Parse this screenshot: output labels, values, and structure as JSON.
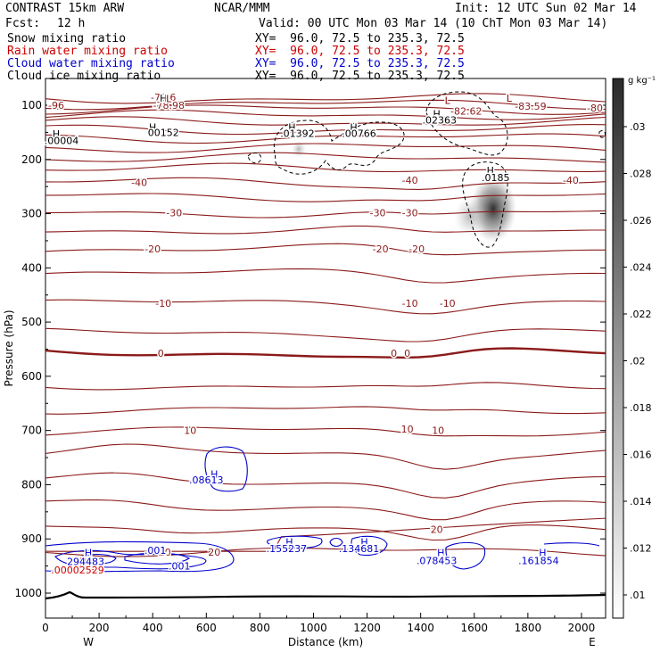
{
  "header": {
    "title": "CONTRAST 15km ARW",
    "org": "NCAR/MMM",
    "init": "Init: 12 UTC Sun 02 Mar 14",
    "fcst_label": "Fcst:",
    "fcst_value": "12 h",
    "valid": "Valid: 00 UTC Mon 03 Mar 14 (10 ChT Mon 03 Mar 14)",
    "fields": [
      {
        "name": "Snow mixing ratio",
        "xy": "XY=  96.0, 72.5 to 235.3, 72.5",
        "color": "#000000"
      },
      {
        "name": "Rain water mixing ratio",
        "xy": "XY=  96.0, 72.5 to 235.3, 72.5",
        "color": "#cc0000"
      },
      {
        "name": "Cloud water mixing ratio",
        "xy": "XY=  96.0, 72.5 to 235.3, 72.5",
        "color": "#0000cc"
      },
      {
        "name": "Cloud ice mixing ratio",
        "xy": "XY=  96.0, 72.5 to 235.3, 72.5",
        "color": "#000000"
      }
    ]
  },
  "chart_data": {
    "type": "cross-section contour",
    "xlabel": "Distance (km)",
    "ylabel": "Pressure (hPa)",
    "x_range": [
      0,
      2090
    ],
    "y_range": [
      1040,
      50
    ],
    "x_ticks": [
      "0",
      "200",
      "400",
      "600",
      "800",
      "1000",
      "1200",
      "1400",
      "1600",
      "1800",
      "2000"
    ],
    "y_ticks": [
      "100",
      "200",
      "300",
      "400",
      "500",
      "600",
      "700",
      "800",
      "900",
      "1000"
    ],
    "x_end_labels": {
      "left": "W",
      "right": "E"
    },
    "colorbar": {
      "unit": "g kg⁻¹",
      "ticks": [
        ".01",
        ".012",
        ".014",
        ".016",
        ".018",
        ".02",
        ".022",
        ".024",
        ".026",
        ".028",
        ".03"
      ]
    },
    "temperature_labels": [
      {
        "x": 440,
        "p": 85,
        "text": "-72.6"
      },
      {
        "x": 40,
        "p": 100,
        "text": "-96"
      },
      {
        "x": 460,
        "p": 100,
        "text": "-78.98"
      },
      {
        "x": 1810,
        "p": 102,
        "text": "-83.59"
      },
      {
        "x": 2050,
        "p": 105,
        "text": "-80"
      },
      {
        "x": 1570,
        "p": 111,
        "text": "-82.62"
      },
      {
        "x": 350,
        "p": 242,
        "text": "-40"
      },
      {
        "x": 1360,
        "p": 238,
        "text": "-40"
      },
      {
        "x": 1960,
        "p": 238,
        "text": "-40"
      },
      {
        "x": 480,
        "p": 298,
        "text": "-30"
      },
      {
        "x": 1240,
        "p": 298,
        "text": "-30"
      },
      {
        "x": 1360,
        "p": 298,
        "text": "-30"
      },
      {
        "x": 400,
        "p": 365,
        "text": "-20"
      },
      {
        "x": 1250,
        "p": 365,
        "text": "-20"
      },
      {
        "x": 1385,
        "p": 365,
        "text": "-20"
      },
      {
        "x": 440,
        "p": 465,
        "text": "-10"
      },
      {
        "x": 1360,
        "p": 465,
        "text": "-10"
      },
      {
        "x": 1500,
        "p": 465,
        "text": "-10"
      },
      {
        "x": 430,
        "p": 557,
        "text": "0"
      },
      {
        "x": 1300,
        "p": 557,
        "text": "0"
      },
      {
        "x": 1350,
        "p": 557,
        "text": "0"
      },
      {
        "x": 540,
        "p": 700,
        "text": "10"
      },
      {
        "x": 1350,
        "p": 697,
        "text": "10"
      },
      {
        "x": 1465,
        "p": 700,
        "text": "10"
      },
      {
        "x": 1460,
        "p": 882,
        "text": "20"
      },
      {
        "x": 445,
        "p": 924,
        "text": "20"
      },
      {
        "x": 630,
        "p": 924,
        "text": "20"
      }
    ],
    "high_low_labels": [
      {
        "x": 440,
        "p": 87,
        "text": "H",
        "color": "#000000"
      },
      {
        "x": 460,
        "p": 88,
        "text": "L",
        "color": "#880000"
      },
      {
        "x": 1730,
        "p": 87,
        "text": "L",
        "color": "#880000"
      },
      {
        "x": 1500,
        "p": 91,
        "text": "L",
        "color": "#880000"
      },
      {
        "x": 1460,
        "p": 116,
        "text": "H",
        "color": "#000000"
      },
      {
        "x": 1470,
        "p": 127,
        "text": ".02363",
        "color": "#000000"
      },
      {
        "x": 40,
        "p": 153,
        "text": "H",
        "color": "#000000"
      },
      {
        "x": 60,
        "p": 165,
        "text": ".00004",
        "color": "#000000"
      },
      {
        "x": 400,
        "p": 140,
        "text": "H",
        "color": "#000000"
      },
      {
        "x": 440,
        "p": 150,
        "text": "00152",
        "color": "#000000"
      },
      {
        "x": 920,
        "p": 140,
        "text": "H",
        "color": "#000000"
      },
      {
        "x": 940,
        "p": 152,
        "text": ".01392",
        "color": "#000000"
      },
      {
        "x": 1150,
        "p": 140,
        "text": "H",
        "color": "#000000"
      },
      {
        "x": 1170,
        "p": 152,
        "text": ".00766",
        "color": "#000000"
      },
      {
        "x": 1660,
        "p": 220,
        "text": "H",
        "color": "#000000"
      },
      {
        "x": 1680,
        "p": 233,
        "text": ".0185",
        "color": "#000000"
      },
      {
        "x": 630,
        "p": 780,
        "text": "H",
        "color": "#0000cc"
      },
      {
        "x": 600,
        "p": 791,
        "text": ".08613",
        "color": "#0000cc"
      },
      {
        "x": 910,
        "p": 905,
        "text": "H",
        "color": "#0000cc"
      },
      {
        "x": 900,
        "p": 918,
        "text": ".155237",
        "color": "#0000cc"
      },
      {
        "x": 1190,
        "p": 905,
        "text": "H",
        "color": "#0000cc"
      },
      {
        "x": 1170,
        "p": 918,
        "text": ".134681",
        "color": "#0000cc"
      },
      {
        "x": 160,
        "p": 925,
        "text": "H",
        "color": "#0000cc"
      },
      {
        "x": 140,
        "p": 942,
        "text": "H",
        "color": "#cc0000"
      },
      {
        "x": 150,
        "p": 942,
        "text": "294483",
        "color": "#0000cc"
      },
      {
        "x": 120,
        "p": 957,
        "text": ".00002529",
        "color": "#cc0000"
      },
      {
        "x": 410,
        "p": 921,
        "text": ".001",
        "color": "#0000cc"
      },
      {
        "x": 500,
        "p": 950,
        "text": ".001",
        "color": "#0000cc"
      },
      {
        "x": 1475,
        "p": 925,
        "text": "H",
        "color": "#0000cc"
      },
      {
        "x": 1460,
        "p": 940,
        "text": ".078453",
        "color": "#0000cc"
      },
      {
        "x": 1855,
        "p": 925,
        "text": "H",
        "color": "#0000cc"
      },
      {
        "x": 1840,
        "p": 940,
        "text": ".161854",
        "color": "#0000cc"
      }
    ],
    "temperature_levels": [
      -96,
      -80,
      -70,
      -60,
      -50,
      -40,
      -30,
      -20,
      -10,
      0,
      10,
      20
    ],
    "contour_color": "#8b1a1a",
    "cloud_water_color": "#0000cc",
    "cloud_ice_style": "dashed black"
  }
}
